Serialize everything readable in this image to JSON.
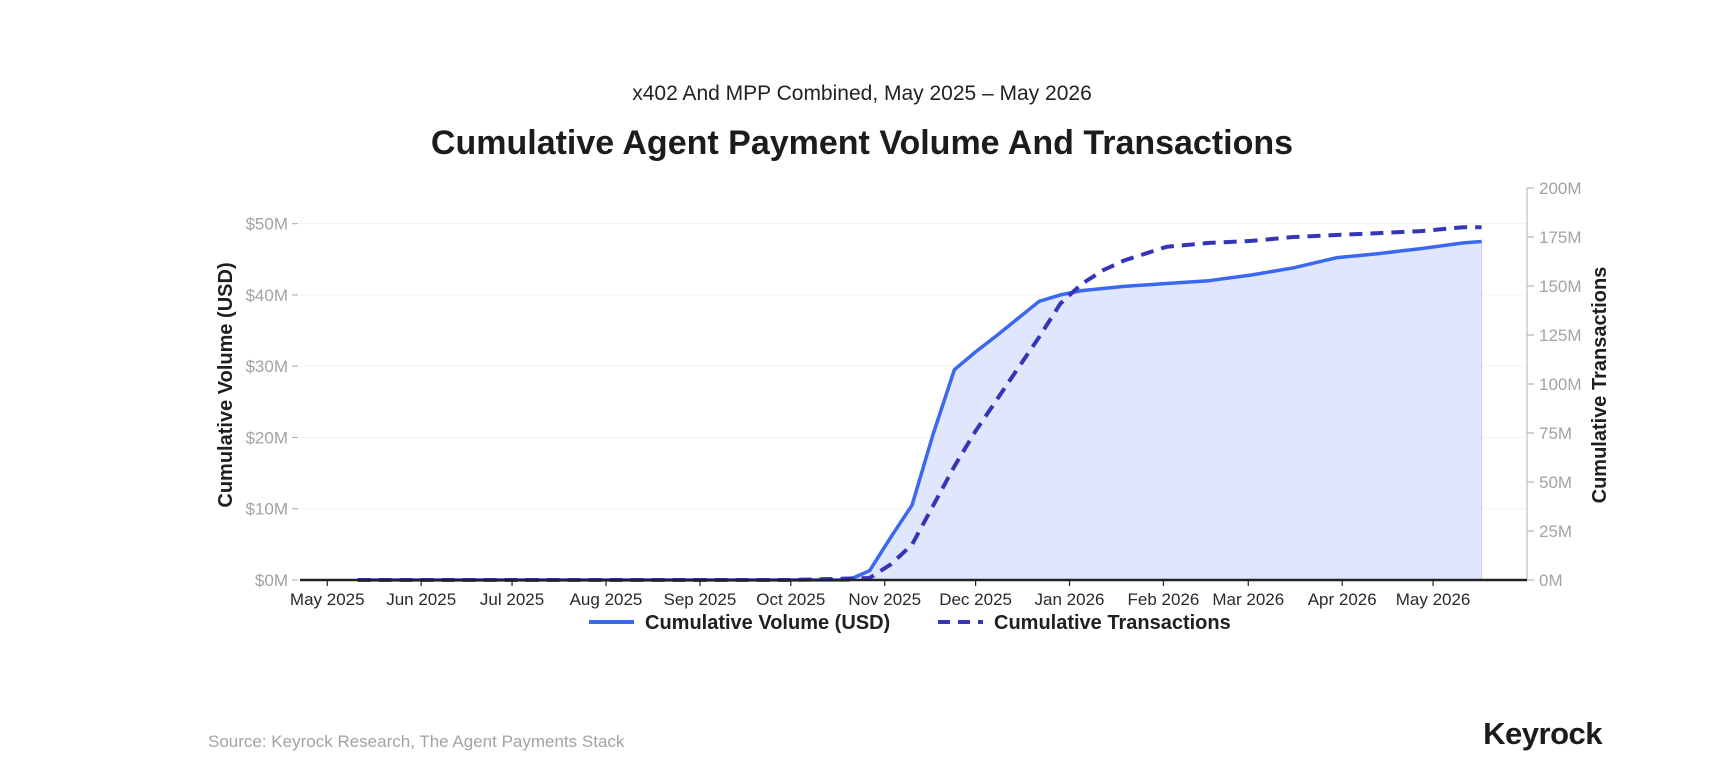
{
  "chart_data": {
    "type": "line",
    "subtitle": "x402 And MPP Combined, May 2025 – May 2026",
    "title": "Cumulative Agent Payment Volume And Transactions",
    "ylabel": "Cumulative Volume (USD)",
    "y2label": "Cumulative Transactions",
    "ylim": [
      0,
      55
    ],
    "y2lim": [
      0,
      200
    ],
    "yticks": [
      "$0M",
      "$10M",
      "$20M",
      "$30M",
      "$40M",
      "$50M"
    ],
    "yticks_values": [
      0,
      10,
      20,
      30,
      40,
      50
    ],
    "y2ticks": [
      "0M",
      "25M",
      "50M",
      "75M",
      "100M",
      "125M",
      "150M",
      "175M",
      "200M"
    ],
    "y2ticks_values": [
      0,
      25,
      50,
      75,
      100,
      125,
      150,
      175,
      200
    ],
    "xticks": [
      "May 2025",
      "Jun 2025",
      "Jul 2025",
      "Aug 2025",
      "Sep 2025",
      "Oct 2025",
      "Nov 2025",
      "Dec 2025",
      "Jan 2026",
      "Feb 2026",
      "Mar 2026",
      "Apr 2026",
      "May 2026"
    ],
    "xticks_values": [
      "2025-05-01",
      "2025-06-01",
      "2025-07-01",
      "2025-08-01",
      "2025-09-01",
      "2025-10-01",
      "2025-11-01",
      "2025-12-01",
      "2026-01-01",
      "2026-02-01",
      "2026-03-01",
      "2026-04-01",
      "2026-05-01"
    ],
    "xlim": [
      "2025-04-22",
      "2026-06-01"
    ],
    "grid": true,
    "legend_position": "bottom",
    "series": [
      {
        "name": "Cumulative Volume (USD)",
        "axis": "left",
        "style": "solid",
        "fill": true,
        "x": [
          "2025-05-11",
          "2025-06-01",
          "2025-07-01",
          "2025-08-01",
          "2025-09-01",
          "2025-10-01",
          "2025-10-20",
          "2025-10-27",
          "2025-11-03",
          "2025-11-10",
          "2025-11-17",
          "2025-11-24",
          "2025-12-01",
          "2025-12-08",
          "2025-12-15",
          "2025-12-22",
          "2025-12-29",
          "2026-01-05",
          "2026-01-19",
          "2026-02-02",
          "2026-02-16",
          "2026-03-02",
          "2026-03-16",
          "2026-03-23",
          "2026-03-30",
          "2026-04-13",
          "2026-04-27",
          "2026-05-11",
          "2026-05-17"
        ],
        "values": [
          0,
          0,
          0,
          0,
          0,
          0,
          0,
          1.3,
          6,
          10.5,
          20.5,
          29.5,
          32,
          34.3,
          36.7,
          39.1,
          40,
          40.6,
          41.2,
          41.6,
          42.0,
          42.8,
          43.8,
          44.5,
          45.2,
          45.8,
          46.5,
          47.3,
          47.5
        ]
      },
      {
        "name": "Cumulative Transactions",
        "axis": "right",
        "style": "dashed",
        "fill": false,
        "x": [
          "2025-05-11",
          "2025-06-01",
          "2025-07-01",
          "2025-08-01",
          "2025-09-01",
          "2025-10-01",
          "2025-10-27",
          "2025-11-03",
          "2025-11-10",
          "2025-11-17",
          "2025-11-24",
          "2025-12-01",
          "2025-12-08",
          "2025-12-15",
          "2025-12-22",
          "2025-12-29",
          "2026-01-05",
          "2026-01-12",
          "2026-01-19",
          "2026-02-02",
          "2026-02-16",
          "2026-03-02",
          "2026-03-16",
          "2026-03-30",
          "2026-04-13",
          "2026-04-27",
          "2026-05-11",
          "2026-05-17"
        ],
        "values": [
          0,
          0,
          0,
          0,
          0,
          0,
          1,
          8,
          18,
          38,
          58,
          76,
          92,
          108,
          124,
          141,
          151,
          158,
          163,
          170,
          172,
          173,
          175,
          176,
          177,
          178,
          180,
          180
        ]
      }
    ],
    "colors": {
      "volume_line": "#3b68f0",
      "volume_fill": "#e0e6fc",
      "transactions_line": "#3535b8",
      "axis": "#222222",
      "grid": "#f3f3f3",
      "tick_text": "#a3a3a3"
    }
  },
  "footer": {
    "source": "Source: Keyrock Research, The Agent Payments Stack",
    "logo": "Keyrock"
  }
}
